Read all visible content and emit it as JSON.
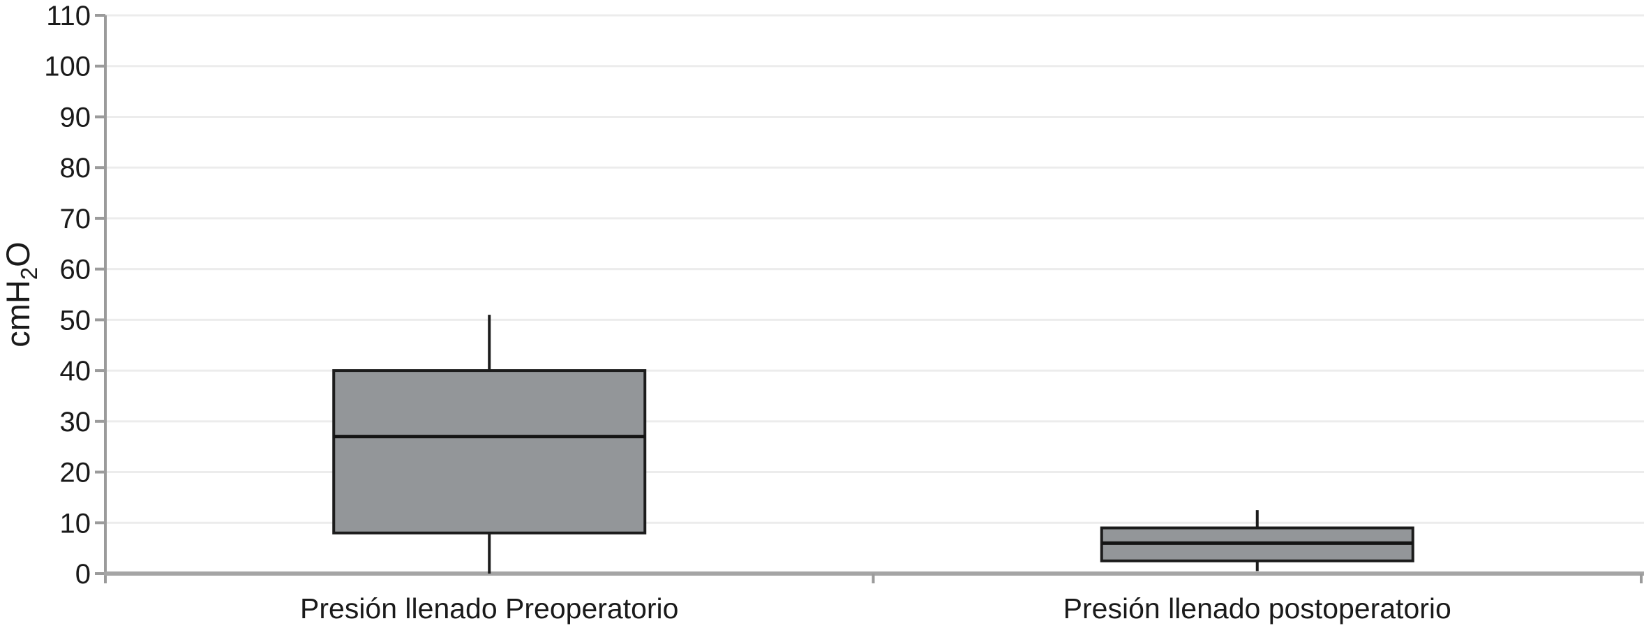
{
  "chart_data": {
    "type": "boxplot",
    "title": "",
    "xlabel": "",
    "ylabel": "cmH₂O",
    "ylabel_parts": {
      "prefix": "cmH",
      "subscript": "2",
      "suffix": "O"
    },
    "ylim": [
      0,
      110
    ],
    "ytick_interval": 10,
    "yticks": [
      0,
      10,
      20,
      30,
      40,
      50,
      60,
      70,
      80,
      90,
      100,
      110
    ],
    "ytick_labels": [
      "0",
      "10",
      "20",
      "30",
      "40",
      "50",
      "60",
      "70",
      "80",
      "90",
      "100",
      "110"
    ],
    "grid": "horizontal-light",
    "legend_position": "none",
    "categories": [
      "Presión llenado Preoperatorio",
      "Presión llenado postoperatorio"
    ],
    "series": [
      {
        "name": "Presión llenado Preoperatorio",
        "whisker_low": 0,
        "q1": 8,
        "median": 27,
        "q3": 40,
        "whisker_high": 51
      },
      {
        "name": "Presión llenado postoperatorio",
        "whisker_low": 0.5,
        "q1": 2.5,
        "median": 6,
        "q3": 9,
        "whisker_high": 12.5
      }
    ],
    "colors": {
      "box_fill": "#939699",
      "box_border": "#1c1c1c",
      "median_line": "#141414",
      "whisker": "#1c1c1c",
      "gridline": "#ececec",
      "y_axis": "#9b9b9b",
      "x_axis": "#a5a5a5",
      "tick": "#9b9b9b",
      "text": "#1a1a1a",
      "background": "#ffffff"
    }
  }
}
